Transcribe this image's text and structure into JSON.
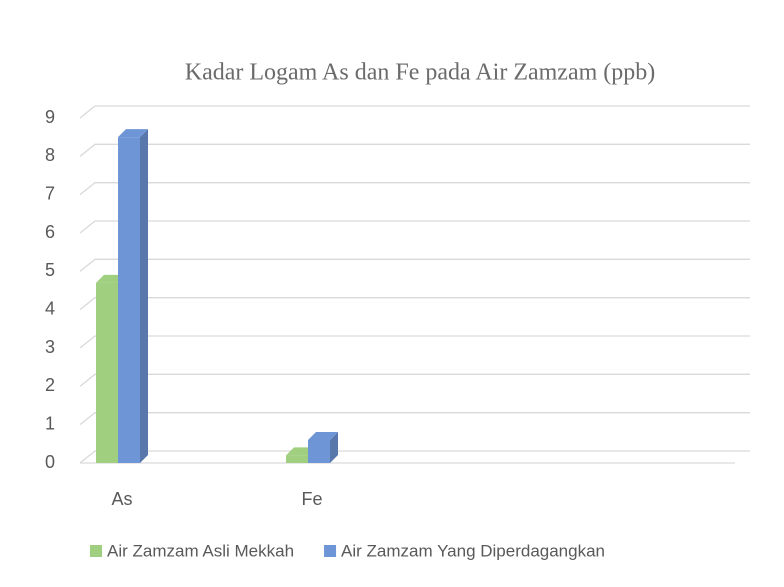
{
  "chart_data": {
    "type": "bar",
    "title": "Kadar Logam As dan Fe pada Air Zamzam (ppb)",
    "categories": [
      "As",
      "Fe"
    ],
    "series": [
      {
        "name": "Air Zamzam Asli Mekkah",
        "color": "#9fcf7f",
        "values": [
          4.7,
          0.2
        ]
      },
      {
        "name": "Air Zamzam Yang Diperdagangkan",
        "color": "#6e95d6",
        "values": [
          8.5,
          0.6
        ]
      }
    ],
    "ylim": [
      0,
      9
    ],
    "yticks": [
      0,
      1,
      2,
      3,
      4,
      5,
      6,
      7,
      8,
      9
    ],
    "grid": true,
    "legend": "bottom"
  }
}
